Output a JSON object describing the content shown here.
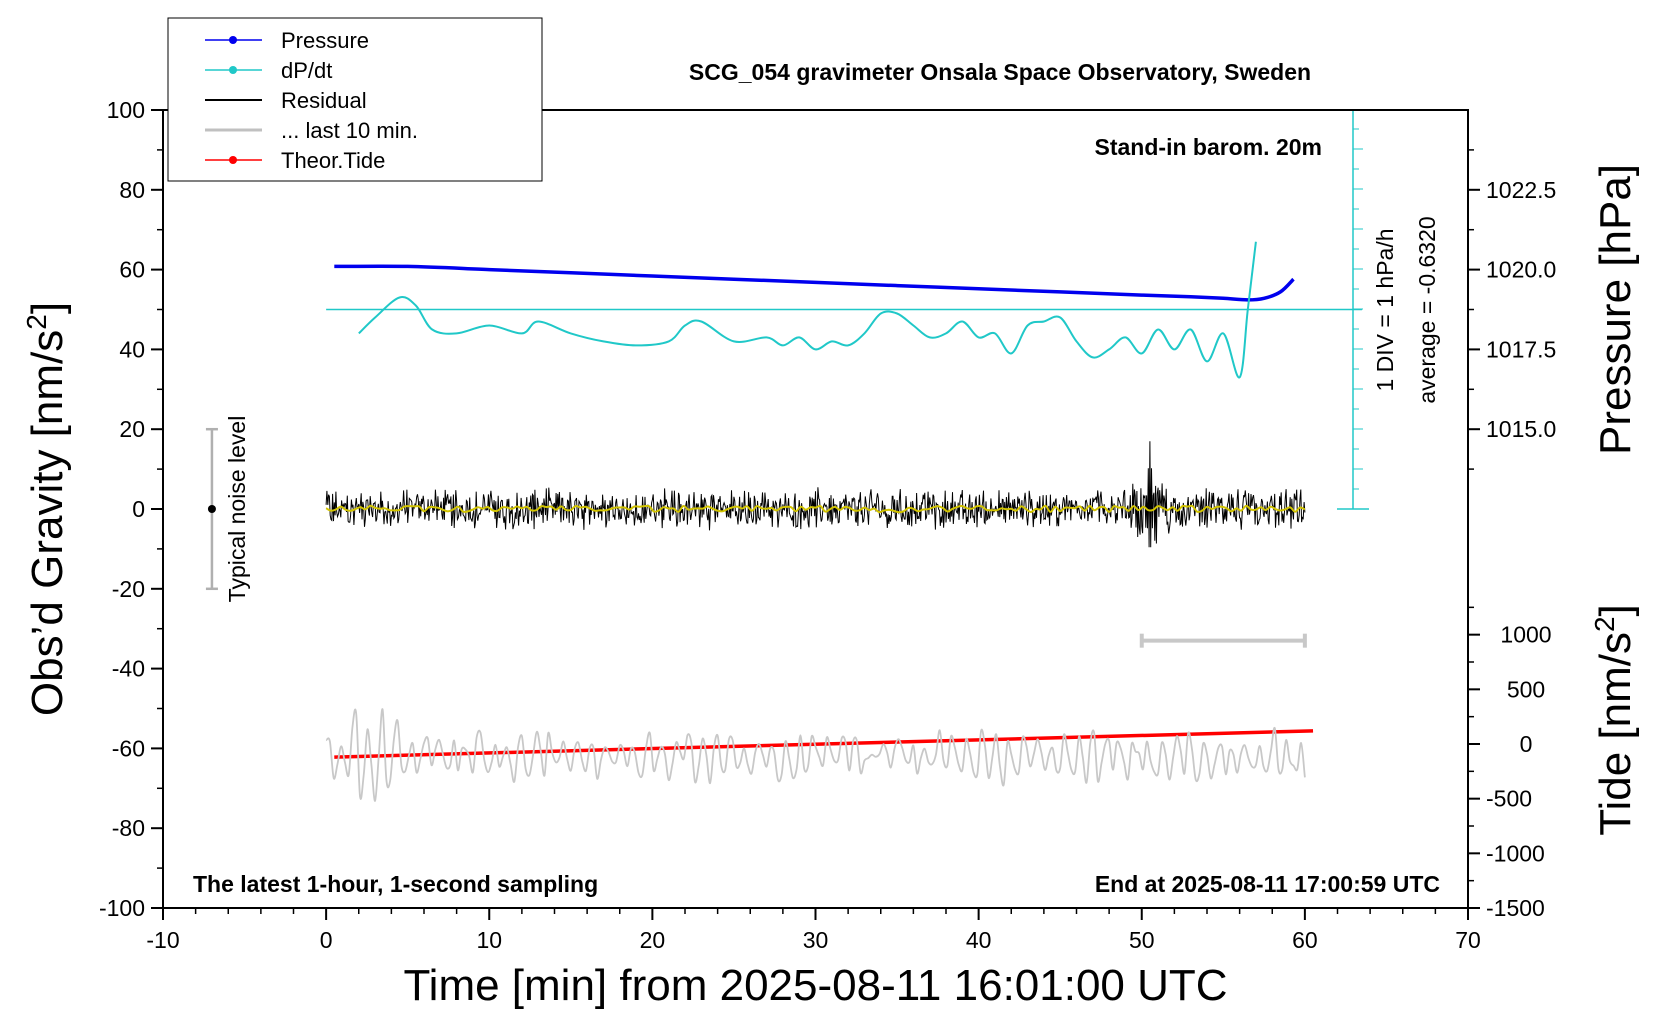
{
  "chart_data": {
    "type": "line",
    "title": "SCG_054 gravimeter Onsala Space Observatory, Sweden",
    "xlabel": "Time [min] from 2025-08-11 16:01:00 UTC",
    "ylabel_left": "Obs’d Gravity [nm/s",
    "ylabel_left_sup": "2",
    "ylabel_left_close": "]",
    "ylabel_right_pressure": "Pressure [hPa]",
    "ylabel_right_tide": "Tide [nm/s",
    "ylabel_right_tide_sup": "2",
    "ylabel_right_tide_close": "]",
    "xlim": [
      -10,
      70
    ],
    "ylim_left": [
      -100,
      100
    ],
    "pressure_range": [
      1012.5,
      1025.0
    ],
    "tide_range": [
      -1500,
      1500
    ],
    "x_ticks": [
      "-10",
      "0",
      "10",
      "20",
      "30",
      "40",
      "50",
      "60",
      "70"
    ],
    "y_left_ticks": [
      "100",
      "80",
      "60",
      "40",
      "20",
      "0",
      "-20",
      "-40",
      "-60",
      "-80",
      "-100"
    ],
    "y_pressure_ticks": [
      "1022.5",
      "1020.0",
      "1017.5",
      "1015.0"
    ],
    "y_tide_ticks": [
      "1000",
      "500",
      "0",
      "-500",
      "-1000",
      "-1500"
    ],
    "annotations": {
      "stand_in": "Stand-in barom. 20m",
      "latest": "The latest 1-hour, 1-second sampling",
      "end_at": "End at 2025-08-11 17:00:59 UTC",
      "div_label": "1 DIV = 1 hPa/h",
      "average_label": "average = -0.6320",
      "noise_label": "Typical noise level"
    },
    "legend": {
      "placement": "top-left",
      "entries": [
        "Pressure",
        "dP/dt",
        "Residual",
        "... last 10 min.",
        "Theor.Tide"
      ]
    },
    "series": [
      {
        "name": "Pressure",
        "color": "#0000ee",
        "axis": "pressure",
        "x": [
          0.5,
          5,
          10,
          15,
          20,
          25,
          30,
          35,
          40,
          45,
          50,
          53,
          55,
          56.5,
          57.5,
          58.5,
          59.3
        ],
        "values": [
          1020.1,
          1020.1,
          1020.0,
          1019.9,
          1019.8,
          1019.7,
          1019.6,
          1019.5,
          1019.4,
          1019.3,
          1019.2,
          1019.15,
          1019.1,
          1019.05,
          1019.1,
          1019.3,
          1019.7
        ]
      },
      {
        "name": "dP/dt",
        "color": "#20c8c8",
        "axis": "left",
        "reference_line_y": 50,
        "x": [
          2.0,
          3.0,
          4.5,
          5.5,
          6.5,
          8,
          10,
          12,
          13,
          15,
          17,
          19,
          21,
          22,
          23,
          25,
          27,
          28,
          29,
          30,
          31,
          32,
          33,
          34,
          35,
          36,
          37,
          38,
          39,
          40,
          41,
          42,
          43,
          44,
          45,
          46,
          47,
          48,
          49,
          50,
          51,
          52,
          53,
          54,
          55,
          56,
          56.5,
          57.0
        ],
        "values": [
          44,
          48,
          53,
          51,
          45,
          44,
          46,
          44,
          47,
          44,
          42,
          41,
          42,
          46,
          47,
          42,
          43,
          41,
          43,
          40,
          42,
          41,
          44,
          49,
          49,
          46,
          43,
          44,
          47,
          43,
          44,
          39,
          46,
          47,
          48,
          42,
          38,
          40,
          43,
          39,
          45,
          40,
          45,
          37,
          44,
          33,
          50,
          67
        ]
      },
      {
        "name": "Residual",
        "color": "#000000",
        "axis": "left",
        "center": 0,
        "typical_amplitude": 4,
        "burst_at": 50.5,
        "burst_range": [
          -12,
          17
        ],
        "x_range": [
          0,
          60
        ]
      },
      {
        "name": "... last 10 min.",
        "color": "#c8c8c8",
        "axis": "left",
        "marker_x_range": [
          50,
          60
        ],
        "marker_y": -33
      },
      {
        "name": "Theor.Tide",
        "color": "#ff0000",
        "axis": "tide",
        "x": [
          0.5,
          60.5
        ],
        "values": [
          -120,
          120
        ]
      },
      {
        "name": "Tide residual (10 min)",
        "color": "#c8c8c8",
        "axis": "left",
        "center": -62,
        "x_range": [
          0,
          60
        ]
      }
    ],
    "noise_level": {
      "x": -7,
      "y": 0,
      "range": [
        -20,
        20
      ]
    }
  }
}
